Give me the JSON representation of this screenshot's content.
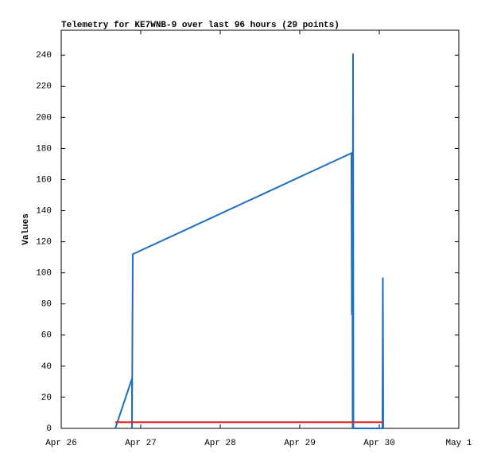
{
  "chart_data": {
    "type": "line",
    "title": "Telemetry for KE7WNB-9 over last 96 hours (29 points)",
    "y_label": "Values",
    "xlim": [
      26,
      31
    ],
    "xticks": [
      {
        "value": 26,
        "label": "Apr 26"
      },
      {
        "value": 27,
        "label": "Apr 27"
      },
      {
        "value": 28,
        "label": "Apr 28"
      },
      {
        "value": 29,
        "label": "Apr 29"
      },
      {
        "value": 30,
        "label": "Apr 30"
      },
      {
        "value": 31,
        "label": "May 1"
      }
    ],
    "ylim": [
      0,
      256
    ],
    "yticks": [
      0,
      20,
      40,
      60,
      80,
      100,
      120,
      140,
      160,
      180,
      200,
      220,
      240
    ],
    "series": [
      {
        "color": "#1f6fbf",
        "x": [
          26.68,
          26.89,
          26.89,
          26.895,
          26.9,
          29.65,
          29.655,
          29.66,
          29.665,
          29.67,
          29.675,
          30.04,
          30.045,
          30.05
        ],
        "values": [
          0,
          32,
          0,
          56,
          112,
          177,
          73,
          177,
          0,
          241,
          0,
          0,
          97,
          0
        ]
      },
      {
        "color": "#e02020",
        "x": [
          26.68,
          30.05
        ],
        "values": [
          4,
          4
        ]
      }
    ]
  }
}
